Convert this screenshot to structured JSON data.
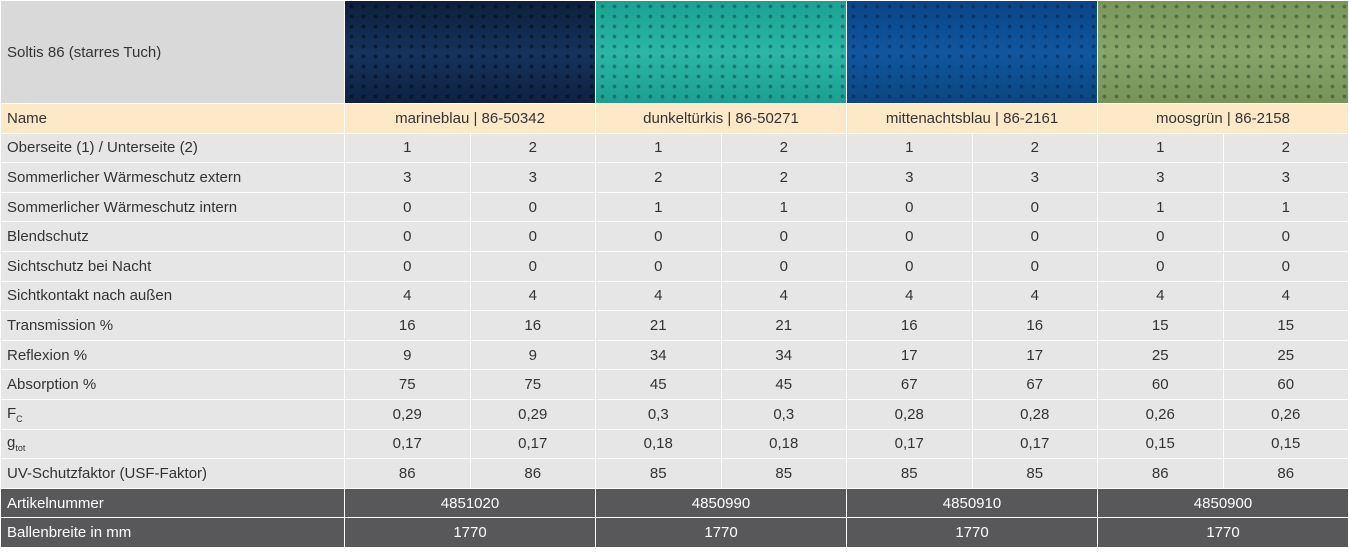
{
  "header": {
    "title": "Soltis 86 (starres Tuch)"
  },
  "table": {
    "name_label": "Name",
    "colors": [
      "marineblau | 86-50342",
      "dunkeltürkis | 86-50271",
      "mittenachtsblau | 86-2161",
      "moosgrün | 86-2158"
    ],
    "rows": [
      {
        "label": "Oberseite (1) / Unterseite (2)",
        "values": [
          1,
          2,
          1,
          2,
          1,
          2,
          1,
          2
        ]
      },
      {
        "label": "Sommerlicher Wärmeschutz extern",
        "values": [
          3,
          3,
          2,
          2,
          3,
          3,
          3,
          3
        ]
      },
      {
        "label": "Sommerlicher Wärmeschutz intern",
        "values": [
          0,
          0,
          1,
          1,
          0,
          0,
          1,
          1
        ]
      },
      {
        "label": "Blendschutz",
        "values": [
          0,
          0,
          0,
          0,
          0,
          0,
          0,
          0
        ]
      },
      {
        "label": "Sichtschutz bei Nacht",
        "values": [
          0,
          0,
          0,
          0,
          0,
          0,
          0,
          0
        ]
      },
      {
        "label": "Sichtkontakt nach außen",
        "values": [
          4,
          4,
          4,
          4,
          4,
          4,
          4,
          4
        ]
      },
      {
        "label": "Transmission %",
        "values": [
          16,
          16,
          21,
          21,
          16,
          16,
          15,
          15
        ]
      },
      {
        "label": "Reflexion %",
        "values": [
          9,
          9,
          34,
          34,
          17,
          17,
          25,
          25
        ]
      },
      {
        "label": "Absorption %",
        "values": [
          75,
          75,
          45,
          45,
          67,
          67,
          60,
          60
        ]
      },
      {
        "label": "F",
        "label_sub": "C",
        "values": [
          "0,29",
          "0,29",
          "0,3",
          "0,3",
          "0,28",
          "0,28",
          "0,26",
          "0,26"
        ]
      },
      {
        "label": "g",
        "label_sub": "tot",
        "values": [
          "0,17",
          "0,17",
          "0,18",
          "0,18",
          "0,17",
          "0,17",
          "0,15",
          "0,15"
        ]
      },
      {
        "label": "UV-Schutzfaktor (USF-Faktor)",
        "values": [
          86,
          86,
          85,
          85,
          85,
          85,
          86,
          86
        ]
      }
    ],
    "footer_rows": [
      {
        "label": "Artikelnummer",
        "values": [
          4851020,
          4850990,
          4850910,
          4850900
        ]
      },
      {
        "label": "Ballenbreite in mm",
        "values": [
          1770,
          1770,
          1770,
          1770
        ]
      }
    ]
  }
}
